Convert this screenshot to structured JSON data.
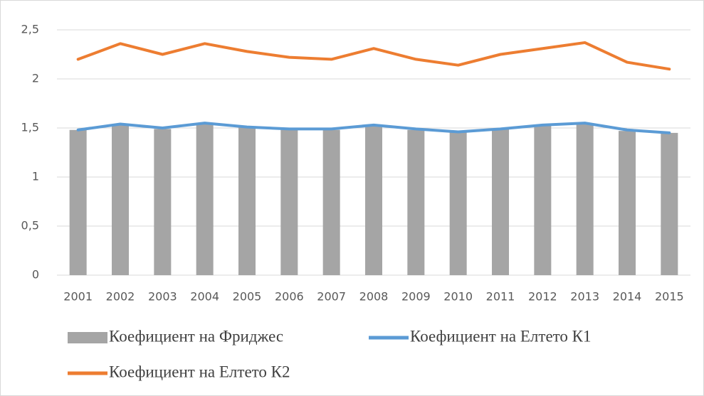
{
  "chart_data": {
    "type": "bar-line",
    "categories": [
      "2001",
      "2002",
      "2003",
      "2004",
      "2005",
      "2006",
      "2007",
      "2008",
      "2009",
      "2010",
      "2011",
      "2012",
      "2013",
      "2014",
      "2015"
    ],
    "series": [
      {
        "name": "Коефициент на Фриджес",
        "type": "bar",
        "color": "#a5a5a5",
        "values": [
          1.48,
          1.54,
          1.49,
          1.55,
          1.51,
          1.49,
          1.48,
          1.53,
          1.48,
          1.46,
          1.49,
          1.53,
          1.55,
          1.47,
          1.45
        ]
      },
      {
        "name": "Коефициент на Елтето К1",
        "type": "line",
        "color": "#5b9bd5",
        "values": [
          1.48,
          1.54,
          1.5,
          1.55,
          1.51,
          1.49,
          1.49,
          1.53,
          1.49,
          1.46,
          1.49,
          1.53,
          1.55,
          1.48,
          1.45
        ]
      },
      {
        "name": "Коефициент на Елтето К2",
        "type": "line",
        "color": "#ed7d31",
        "values": [
          2.2,
          2.36,
          2.25,
          2.36,
          2.28,
          2.22,
          2.2,
          2.31,
          2.2,
          2.14,
          2.25,
          2.31,
          2.37,
          2.17,
          2.1
        ]
      }
    ],
    "ylim": [
      0,
      2.5
    ],
    "yticks": [
      0,
      {
        "value": 0.5,
        "label": "0,5"
      },
      1,
      {
        "value": 1.5,
        "label": "1,5"
      },
      2,
      {
        "value": 2.5,
        "label": "2,5"
      }
    ],
    "grid": true,
    "legend": "bottom"
  }
}
